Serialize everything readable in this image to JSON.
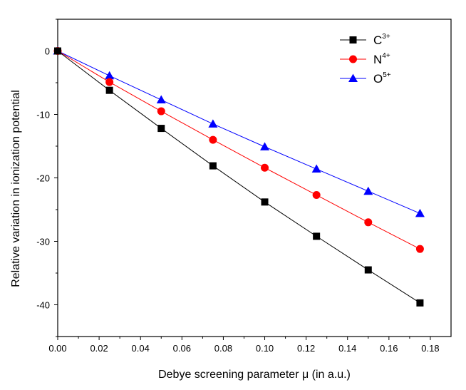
{
  "chart_data": {
    "type": "line",
    "title": "",
    "xlabel": "Debye screening parameter μ (in a.u.)",
    "ylabel": "Relative variation in ionization potential",
    "xlim": [
      0.0,
      0.19
    ],
    "ylim": [
      -45,
      5
    ],
    "x_ticks": [
      0.0,
      0.02,
      0.04,
      0.06,
      0.08,
      0.1,
      0.12,
      0.14,
      0.16,
      0.18
    ],
    "x_tick_labels": [
      "0.00",
      "0.02",
      "0.04",
      "0.06",
      "0.08",
      "0.10",
      "0.12",
      "0.14",
      "0.16",
      "0.18"
    ],
    "y_ticks": [
      0,
      -10,
      -20,
      -30,
      -40
    ],
    "y_tick_labels": [
      "0",
      "-10",
      "-20",
      "-30",
      "-40"
    ],
    "legend_position": "top-right",
    "x": [
      0.0,
      0.025,
      0.05,
      0.075,
      0.1,
      0.125,
      0.15,
      0.175
    ],
    "series": [
      {
        "name": "C",
        "sup": "3+",
        "marker": "square",
        "color": "#000000",
        "values": [
          0,
          -6.2,
          -12.2,
          -18.1,
          -23.8,
          -29.2,
          -34.5,
          -39.7
        ]
      },
      {
        "name": "N",
        "sup": "4+",
        "marker": "circle",
        "color": "#ff0000",
        "values": [
          0,
          -4.9,
          -9.5,
          -14.0,
          -18.4,
          -22.7,
          -27.0,
          -31.2
        ]
      },
      {
        "name": "O",
        "sup": "5+",
        "marker": "triangle",
        "color": "#0000ff",
        "values": [
          0,
          -3.9,
          -7.7,
          -11.5,
          -15.1,
          -18.6,
          -22.1,
          -25.6
        ]
      }
    ]
  }
}
